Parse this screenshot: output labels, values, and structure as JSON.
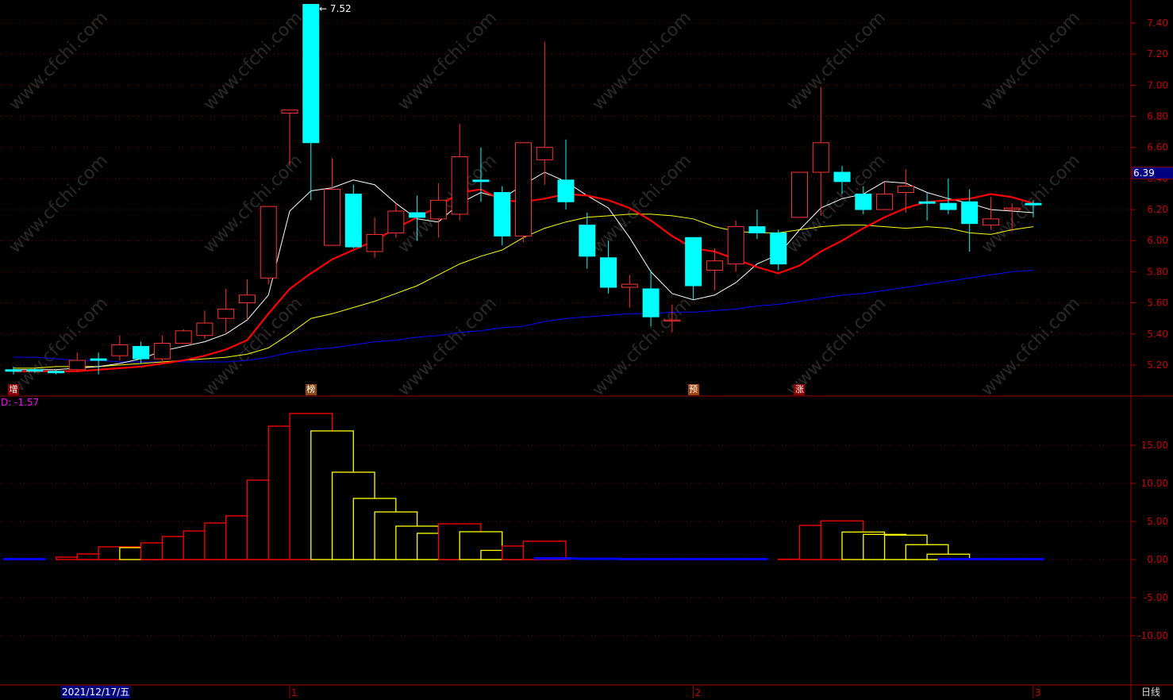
{
  "watermark": "www.cfchi.com",
  "period_label": "日线",
  "indicator_label": "D: -1.57",
  "cursor_date": "2021/12/17/五",
  "chart_data": [
    {
      "type": "candlestick",
      "ylim": [
        5.05,
        7.55
      ],
      "y_ticks": [
        "7.40",
        "7.20",
        "7.00",
        "6.80",
        "6.60",
        "6.40",
        "6.20",
        "6.00",
        "5.80",
        "5.60",
        "5.40",
        "5.20"
      ],
      "grid": true,
      "current_price_label": "6.39",
      "high_label": "7.52",
      "x_ticks": [
        {
          "label": "1",
          "index": 13
        },
        {
          "label": "2",
          "index": 32
        },
        {
          "label": "3",
          "index": 48
        }
      ],
      "markers": [
        {
          "label": "增",
          "index": 0,
          "color": "#8b0000"
        },
        {
          "label": "榜",
          "index": 14,
          "color": "#8b4513"
        },
        {
          "label": "预",
          "index": 32,
          "color": "#a0400a"
        },
        {
          "label": "涨",
          "index": 37,
          "color": "#8b0000"
        }
      ],
      "colors": {
        "up": "#ff3232",
        "down": "#00ffff",
        "ma5": "#ffffff",
        "ma10": "#ff0000",
        "ma20": "#ffff00",
        "ma60": "#0000ff"
      },
      "candles_ohlc": [
        [
          5.17,
          5.19,
          5.14,
          5.16
        ],
        [
          5.17,
          5.18,
          5.15,
          5.16
        ],
        [
          5.16,
          5.17,
          5.14,
          5.15
        ],
        [
          5.17,
          5.28,
          5.16,
          5.23
        ],
        [
          5.24,
          5.28,
          5.14,
          5.23
        ],
        [
          5.26,
          5.39,
          5.23,
          5.33
        ],
        [
          5.32,
          5.35,
          5.21,
          5.24
        ],
        [
          5.24,
          5.39,
          5.22,
          5.34
        ],
        [
          5.34,
          5.43,
          5.34,
          5.42
        ],
        [
          5.39,
          5.55,
          5.37,
          5.47
        ],
        [
          5.5,
          5.69,
          5.41,
          5.56
        ],
        [
          5.6,
          5.75,
          5.49,
          5.65
        ],
        [
          5.76,
          6.22,
          5.72,
          6.22
        ],
        [
          6.82,
          6.84,
          6.48,
          6.84
        ],
        [
          7.52,
          7.52,
          6.26,
          6.63
        ],
        [
          5.97,
          6.53,
          5.97,
          6.33
        ],
        [
          6.3,
          6.36,
          5.95,
          5.96
        ],
        [
          5.93,
          6.15,
          5.89,
          6.04
        ],
        [
          6.05,
          6.24,
          6.02,
          6.19
        ],
        [
          6.18,
          6.29,
          6.0,
          6.15
        ],
        [
          6.14,
          6.37,
          6.02,
          6.26
        ],
        [
          6.17,
          6.75,
          6.13,
          6.54
        ],
        [
          6.39,
          6.6,
          6.25,
          6.38
        ],
        [
          6.31,
          6.35,
          5.97,
          6.03
        ],
        [
          6.03,
          6.63,
          5.99,
          6.63
        ],
        [
          6.52,
          7.28,
          6.36,
          6.6
        ],
        [
          6.39,
          6.65,
          6.2,
          6.25
        ],
        [
          6.1,
          6.18,
          5.82,
          5.9
        ],
        [
          5.89,
          6.0,
          5.66,
          5.7
        ],
        [
          5.7,
          5.78,
          5.57,
          5.72
        ],
        [
          5.69,
          5.81,
          5.45,
          5.51
        ],
        [
          5.49,
          5.59,
          5.41,
          5.49
        ],
        [
          6.02,
          6.02,
          5.62,
          5.71
        ],
        [
          5.81,
          5.95,
          5.68,
          5.87
        ],
        [
          5.85,
          6.13,
          5.8,
          6.09
        ],
        [
          6.09,
          6.2,
          6.01,
          6.05
        ],
        [
          6.05,
          6.07,
          5.81,
          5.85
        ],
        [
          6.15,
          6.44,
          6.15,
          6.44
        ],
        [
          6.44,
          6.99,
          6.16,
          6.63
        ],
        [
          6.44,
          6.48,
          6.3,
          6.38
        ],
        [
          6.3,
          6.35,
          6.17,
          6.2
        ],
        [
          6.2,
          6.38,
          6.2,
          6.3
        ],
        [
          6.31,
          6.46,
          6.18,
          6.35
        ],
        [
          6.25,
          6.31,
          6.13,
          6.24
        ],
        [
          6.24,
          6.4,
          6.17,
          6.2
        ],
        [
          6.25,
          6.33,
          5.93,
          6.11
        ],
        [
          6.1,
          6.28,
          6.07,
          6.14
        ],
        [
          6.2,
          6.24,
          6.06,
          6.21
        ],
        [
          6.24,
          6.26,
          6.15,
          6.23
        ]
      ],
      "ma": {
        "ma5": [
          5.17,
          5.17,
          5.17,
          5.18,
          5.19,
          5.21,
          5.24,
          5.29,
          5.32,
          5.35,
          5.4,
          5.49,
          5.65,
          6.19,
          6.32,
          6.34,
          6.39,
          6.36,
          6.24,
          6.14,
          6.12,
          6.24,
          6.31,
          6.27,
          6.36,
          6.44,
          6.38,
          6.29,
          6.21,
          6.02,
          5.8,
          5.66,
          5.62,
          5.65,
          5.73,
          5.85,
          5.91,
          6.07,
          6.21,
          6.27,
          6.3,
          6.38,
          6.37,
          6.31,
          6.27,
          6.24,
          6.2,
          6.19,
          6.18
        ],
        "ma10": [
          5.16,
          5.16,
          5.16,
          5.16,
          5.17,
          5.18,
          5.19,
          5.21,
          5.23,
          5.26,
          5.3,
          5.36,
          5.53,
          5.69,
          5.79,
          5.88,
          5.94,
          6.0,
          6.08,
          6.15,
          6.22,
          6.31,
          6.33,
          6.26,
          6.25,
          6.27,
          6.3,
          6.29,
          6.26,
          6.21,
          6.13,
          6.03,
          5.95,
          5.93,
          5.88,
          5.83,
          5.79,
          5.84,
          5.93,
          6.0,
          6.08,
          6.15,
          6.21,
          6.25,
          6.26,
          6.27,
          6.3,
          6.28,
          6.24
        ],
        "ma20": [
          5.18,
          5.18,
          5.19,
          5.19,
          5.19,
          5.2,
          5.21,
          5.22,
          5.23,
          5.24,
          5.25,
          5.27,
          5.31,
          5.4,
          5.5,
          5.53,
          5.57,
          5.61,
          5.66,
          5.71,
          5.78,
          5.85,
          5.9,
          5.94,
          6.02,
          6.08,
          6.12,
          6.15,
          6.16,
          6.17,
          6.17,
          6.16,
          6.14,
          6.09,
          6.06,
          6.05,
          6.05,
          6.07,
          6.09,
          6.1,
          6.1,
          6.09,
          6.08,
          6.09,
          6.08,
          6.05,
          6.04,
          6.07,
          6.09
        ],
        "ma60": [
          5.25,
          5.25,
          5.24,
          5.23,
          5.23,
          5.22,
          5.22,
          5.22,
          5.22,
          5.22,
          5.22,
          5.23,
          5.25,
          5.28,
          5.3,
          5.31,
          5.33,
          5.35,
          5.36,
          5.38,
          5.39,
          5.41,
          5.42,
          5.44,
          5.45,
          5.48,
          5.5,
          5.51,
          5.52,
          5.53,
          5.53,
          5.54,
          5.54,
          5.55,
          5.56,
          5.58,
          5.59,
          5.61,
          5.63,
          5.65,
          5.66,
          5.68,
          5.7,
          5.72,
          5.74,
          5.76,
          5.78,
          5.8,
          5.81
        ]
      }
    },
    {
      "type": "bar",
      "ylim": [
        -13,
        19.5
      ],
      "y_ticks": [
        "15.00",
        "10.00",
        "5.00",
        "0.00",
        "-5.00",
        "-10.00"
      ],
      "grid": true,
      "values": [
        0.1,
        0.1,
        0.31,
        0.73,
        1.67,
        1.56,
        2.19,
        3.02,
        3.75,
        4.79,
        5.73,
        10.42,
        17.5,
        19.17,
        16.88,
        11.46,
        8.02,
        6.25,
        4.38,
        3.44,
        4.69,
        3.65,
        1.2,
        1.77,
        2.4,
        0.2,
        0.2,
        0.15,
        0.15,
        0.1,
        0.1,
        0.1,
        0.1,
        0.1,
        0.1,
        0.1,
        0.05,
        4.48,
        5.07,
        3.61,
        3.3,
        3.2,
        1.95,
        0.7,
        0.1,
        0.1,
        0.1,
        0.1,
        0.1
      ],
      "bar_colors": [
        "blue",
        "blue",
        "red",
        "red",
        "red",
        "yellow",
        "red",
        "red",
        "red",
        "red",
        "red",
        "red",
        "red",
        "red",
        "yellow",
        "yellow",
        "yellow",
        "yellow",
        "yellow",
        "yellow",
        "red",
        "yellow",
        "yellow",
        "red",
        "red",
        "blue",
        "blue",
        "blue",
        "blue",
        "blue",
        "blue",
        "blue",
        "blue",
        "blue",
        "blue",
        "blue",
        "red",
        "red",
        "red",
        "yellow",
        "yellow",
        "yellow",
        "yellow",
        "yellow",
        "blue",
        "blue",
        "blue",
        "blue",
        "blue"
      ],
      "colors": {
        "red": "#ff0000",
        "yellow": "#ffff00",
        "blue": "#0000ff"
      }
    }
  ]
}
